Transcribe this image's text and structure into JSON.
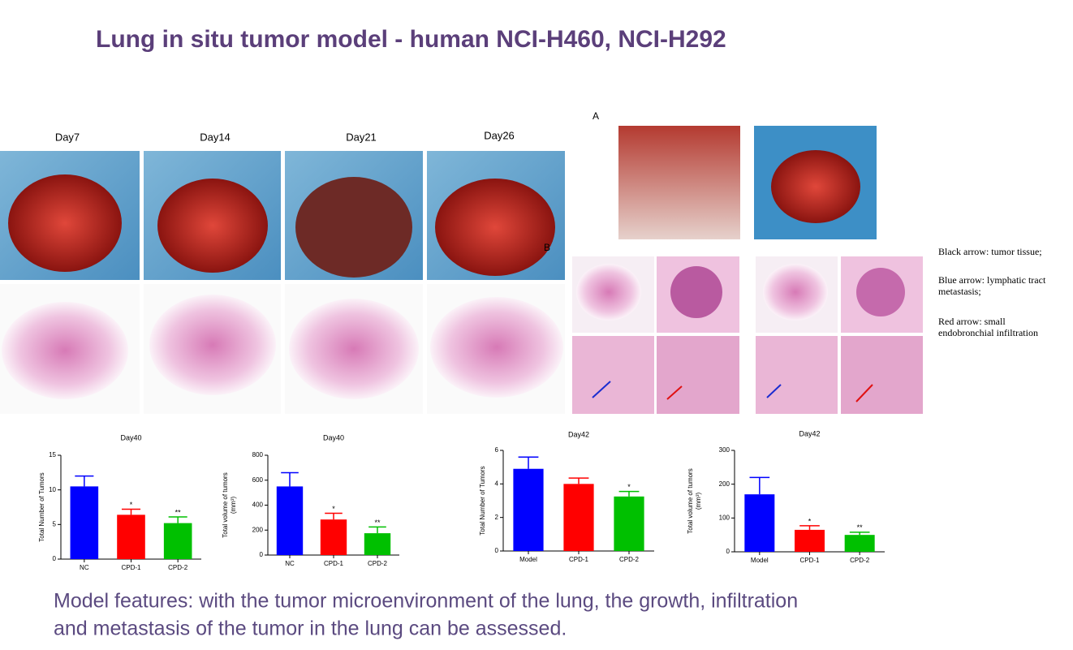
{
  "title": "Lung in situ tumor model - human NCI-H460, NCI-H292",
  "day_labels": [
    "Day7",
    "Day14",
    "Day21",
    "Day26"
  ],
  "panel_labels": [
    "A",
    "B"
  ],
  "arrow_notes": [
    [
      "Black arrow: tumor tissue;"
    ],
    [
      "Blue arrow: lymphatic tract",
      "metastasis;"
    ],
    [
      "Red arrow: small",
      "endobronchial infiltration"
    ]
  ],
  "footer": [
    "Model features: with the tumor microenvironment of the lung, the growth, infiltration",
    "and metastasis of the tumor in the lung can be assessed."
  ],
  "chart_data": [
    {
      "type": "bar",
      "title": "Day40",
      "y_label": [
        "Total Number of Tumors"
      ],
      "categories": [
        "NC",
        "CPD-1",
        "CPD-2"
      ],
      "values": [
        10.5,
        6.4,
        5.2
      ],
      "errors": [
        1.5,
        0.8,
        0.9
      ],
      "significance": [
        null,
        "*",
        "**"
      ],
      "colors": [
        "#0000ff",
        "#ff0000",
        "#00c000"
      ],
      "ylim": [
        0,
        15
      ],
      "yticks": [
        0,
        5,
        10,
        15
      ]
    },
    {
      "type": "bar",
      "title": "Day40",
      "y_label": [
        "Total volume of tumors",
        "(mm³)"
      ],
      "categories": [
        "NC",
        "CPD-1",
        "CPD-2"
      ],
      "values": [
        550,
        285,
        175
      ],
      "errors": [
        110,
        50,
        50
      ],
      "significance": [
        null,
        "*",
        "**"
      ],
      "colors": [
        "#0000ff",
        "#ff0000",
        "#00c000"
      ],
      "ylim": [
        0,
        800
      ],
      "yticks": [
        0,
        200,
        400,
        600,
        800
      ]
    },
    {
      "type": "bar",
      "title": "Day42",
      "y_label": [
        "Total Number of Tumors"
      ],
      "categories": [
        "Model",
        "CPD-1",
        "CPD-2"
      ],
      "values": [
        4.9,
        4.0,
        3.25
      ],
      "errors": [
        0.7,
        0.35,
        0.3
      ],
      "significance": [
        null,
        null,
        "*"
      ],
      "colors": [
        "#0000ff",
        "#ff0000",
        "#00c000"
      ],
      "ylim": [
        0,
        6
      ],
      "yticks": [
        0,
        2,
        4,
        6
      ]
    },
    {
      "type": "bar",
      "title": "Day42",
      "y_label": [
        "Total volume of tumors",
        "(mm³)"
      ],
      "categories": [
        "Model",
        "CPD-1",
        "CPD-2"
      ],
      "values": [
        170,
        65,
        50
      ],
      "errors": [
        50,
        12,
        8
      ],
      "significance": [
        null,
        "*",
        "**"
      ],
      "colors": [
        "#0000ff",
        "#ff0000",
        "#00c000"
      ],
      "ylim": [
        0,
        300
      ],
      "yticks": [
        0,
        100,
        200,
        300
      ]
    }
  ]
}
